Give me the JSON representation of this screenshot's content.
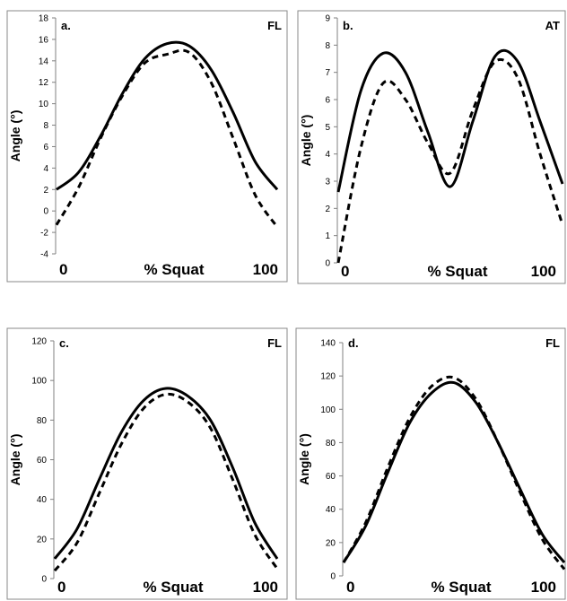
{
  "chart_data": [
    {
      "type": "line",
      "panel_label": "a.",
      "tag": "FL",
      "ylabel": "Angle (°)",
      "xlabel": "% Squat",
      "x_start_label": "0",
      "x_end_label": "100",
      "ylim": [
        -4,
        18
      ],
      "yticks": [
        "-4",
        "-2",
        "0",
        "2",
        "4",
        "6",
        "8",
        "10",
        "12",
        "14",
        "16",
        "18"
      ],
      "x": [
        0,
        10,
        20,
        30,
        40,
        50,
        60,
        70,
        80,
        90,
        100
      ],
      "series": [
        {
          "style": "solid",
          "values": [
            2.0,
            3.6,
            7.0,
            11.0,
            14.2,
            15.6,
            15.4,
            13.2,
            9.2,
            4.6,
            2.0
          ]
        },
        {
          "style": "dashed",
          "values": [
            -1.3,
            2.2,
            6.8,
            10.8,
            13.8,
            14.6,
            14.8,
            12.0,
            6.8,
            1.5,
            -1.5
          ]
        }
      ]
    },
    {
      "type": "line",
      "panel_label": "b.",
      "tag": "AT",
      "ylabel": "Angle (°)",
      "xlabel": "% Squat",
      "x_start_label": "0",
      "x_end_label": "100",
      "ylim": [
        0,
        9
      ],
      "yticks": [
        "0",
        "1",
        "2",
        "3",
        "4",
        "5",
        "6",
        "7",
        "8",
        "9"
      ],
      "x": [
        0,
        10,
        20,
        30,
        40,
        50,
        60,
        70,
        80,
        90,
        100
      ],
      "series": [
        {
          "style": "solid",
          "values": [
            2.6,
            6.3,
            7.7,
            7.0,
            4.8,
            2.8,
            5.2,
            7.6,
            7.4,
            5.2,
            2.9
          ]
        },
        {
          "style": "dashed",
          "values": [
            0.0,
            4.2,
            6.6,
            6.0,
            4.4,
            3.3,
            5.6,
            7.4,
            6.8,
            4.0,
            1.4
          ]
        }
      ]
    },
    {
      "type": "line",
      "panel_label": "c.",
      "tag": "FL",
      "ylabel": "Angle (°)",
      "xlabel": "% Squat",
      "x_start_label": "0",
      "x_end_label": "100",
      "ylim": [
        0,
        120
      ],
      "yticks": [
        "0",
        "20",
        "40",
        "60",
        "80",
        "100",
        "120"
      ],
      "x": [
        0,
        10,
        20,
        30,
        40,
        50,
        60,
        70,
        80,
        90,
        100
      ],
      "series": [
        {
          "style": "solid",
          "values": [
            10,
            25,
            50,
            74,
            90,
            96,
            92,
            80,
            56,
            28,
            10
          ]
        },
        {
          "style": "dashed",
          "values": [
            4,
            18,
            43,
            68,
            86,
            93,
            89,
            76,
            50,
            22,
            5
          ]
        }
      ]
    },
    {
      "type": "line",
      "panel_label": "d.",
      "tag": "FL",
      "ylabel": "Angle (°)",
      "xlabel": "% Squat",
      "x_start_label": "0",
      "x_end_label": "100",
      "ylim": [
        0,
        140
      ],
      "yticks": [
        "0",
        "20",
        "40",
        "60",
        "80",
        "100",
        "120",
        "140"
      ],
      "x": [
        0,
        10,
        20,
        30,
        40,
        50,
        60,
        70,
        80,
        90,
        100
      ],
      "series": [
        {
          "style": "solid",
          "values": [
            8,
            30,
            62,
            92,
            110,
            116,
            104,
            80,
            52,
            25,
            8
          ]
        },
        {
          "style": "dashed",
          "values": [
            8,
            32,
            65,
            95,
            114,
            119,
            106,
            80,
            50,
            22,
            4
          ]
        }
      ]
    }
  ]
}
